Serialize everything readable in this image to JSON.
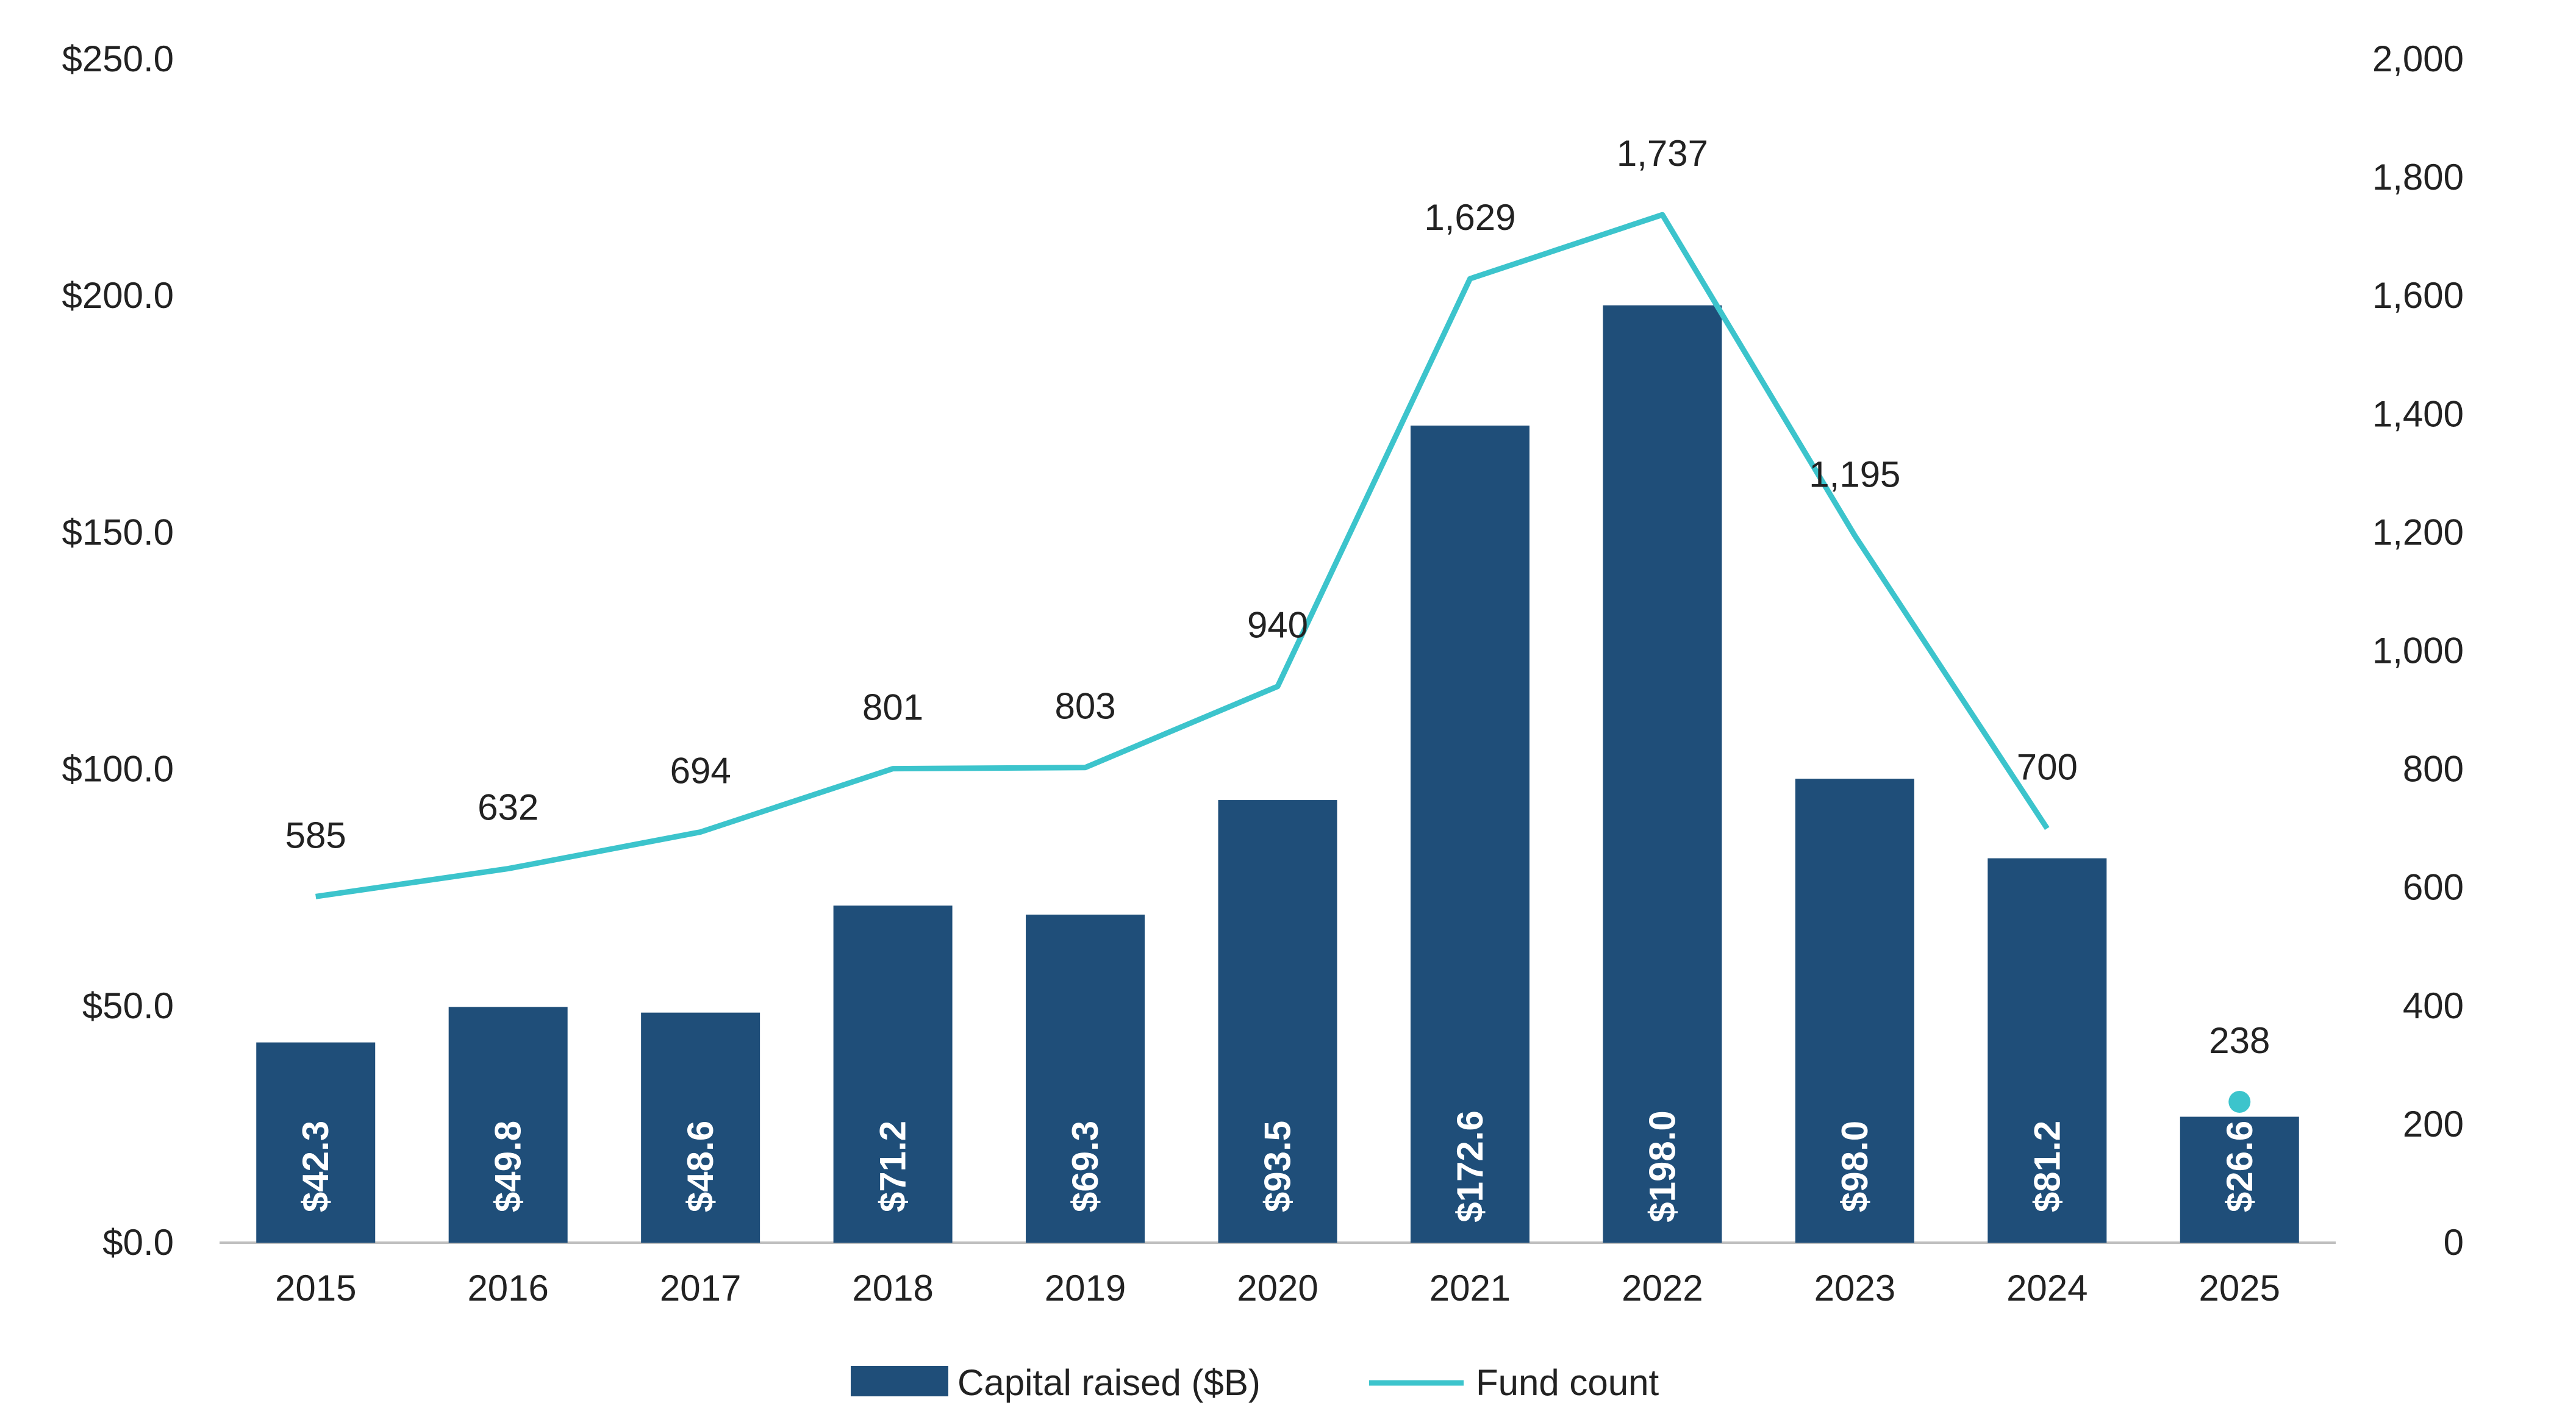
{
  "chart_data": {
    "type": "bar",
    "categories": [
      "2015",
      "2016",
      "2017",
      "2018",
      "2019",
      "2020",
      "2021",
      "2022",
      "2023",
      "2024",
      "2025"
    ],
    "series": [
      {
        "name": "Capital raised ($B)",
        "type": "bar",
        "axis": "left",
        "values": [
          42.3,
          49.8,
          48.6,
          71.2,
          69.3,
          93.5,
          172.6,
          198.0,
          98.0,
          81.2,
          26.6
        ],
        "labels": [
          "$42.3",
          "$49.8",
          "$48.6",
          "$71.2",
          "$69.3",
          "$93.5",
          "$172.6",
          "$198.0",
          "$98.0",
          "$81.2",
          "$26.6"
        ],
        "color": "#1f4e79"
      },
      {
        "name": "Fund count",
        "type": "line",
        "axis": "right",
        "values": [
          585,
          632,
          694,
          801,
          803,
          940,
          1629,
          1737,
          1195,
          700,
          238
        ],
        "labels": [
          "585",
          "632",
          "694",
          "801",
          "803",
          "940",
          "1,629",
          "1,737",
          "1,195",
          "700",
          "238"
        ],
        "color": "#3cc4cc",
        "connected_through_index": 9
      }
    ],
    "y_left": {
      "ylim": [
        0,
        250
      ],
      "ticks": [
        0,
        50,
        100,
        150,
        200,
        250
      ],
      "tick_labels": [
        "$0.0",
        "$50.0",
        "$100.0",
        "$150.0",
        "$200.0",
        "$250.0"
      ]
    },
    "y_right": {
      "ylim": [
        0,
        2000
      ],
      "ticks": [
        0,
        200,
        400,
        600,
        800,
        1000,
        1200,
        1400,
        1600,
        1800,
        2000
      ],
      "tick_labels": [
        "0",
        "200",
        "400",
        "600",
        "800",
        "1,000",
        "1,200",
        "1,400",
        "1,600",
        "1,800",
        "2,000"
      ]
    },
    "title": "",
    "xlabel": "",
    "ylabel": "",
    "grid": false,
    "legend": {
      "position": "bottom",
      "items": [
        "Capital raised ($B)",
        "Fund count"
      ]
    }
  }
}
